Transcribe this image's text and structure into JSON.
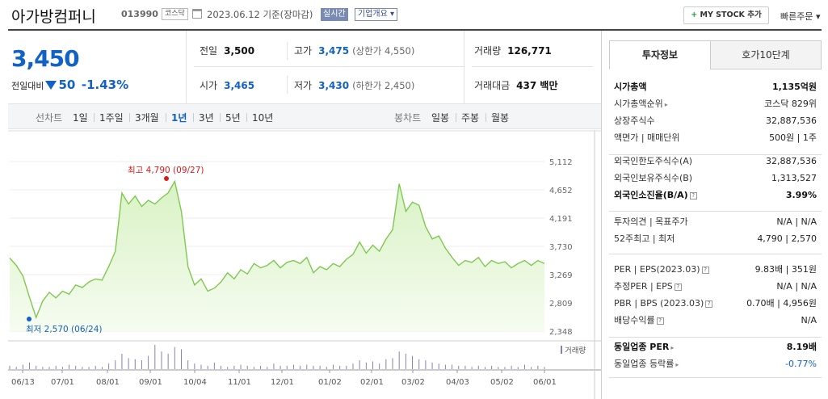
{
  "header": {
    "company": "아가방컴퍼니",
    "code": "013990",
    "market": "코스닥",
    "date": "2023.06.12 기준(장마감)",
    "realtime": "실시간",
    "corp_info": "기업개요 ▾",
    "mystock": "MY STOCK 추가",
    "mystock_plus": "+",
    "quick_order": "빠른주문 ▾"
  },
  "price": {
    "current": "3,450",
    "vs_prev_label": "전일대비",
    "change": "50",
    "change_pct": "-1.43%"
  },
  "stats": {
    "prev_label": "전일",
    "prev": "3,500",
    "high_label": "고가",
    "high": "3,475",
    "upper_limit": "(상한가 4,550)",
    "volume_label": "거래량",
    "volume": "126,771",
    "open_label": "시가",
    "open": "3,465",
    "low_label": "저가",
    "low": "3,430",
    "lower_limit": "(하한가 2,450)",
    "amount_label": "거래대금",
    "amount": "437 백만"
  },
  "periods": {
    "line_label": "선차트",
    "items": [
      "1일",
      "1주일",
      "3개월",
      "1년",
      "3년",
      "5년",
      "10년"
    ],
    "selected": "1년",
    "candle_label": "봉차트",
    "candle_items": [
      "일봉",
      "주봉",
      "월봉"
    ]
  },
  "chart_data": {
    "type": "area",
    "y_ticks": [
      "5,112",
      "4,652",
      "4,191",
      "3,730",
      "3,269",
      "2,809",
      "2,348"
    ],
    "ylim": [
      2348,
      5112
    ],
    "x_ticks": [
      "06/13",
      "07/01",
      "08/01",
      "09/01",
      "10/04",
      "11/01",
      "12/01",
      "01/02",
      "02/01",
      "03/02",
      "04/03",
      "05/02",
      "06/01"
    ],
    "high_label": "최고 4,790 (09/27)",
    "low_label": "최저 2,570 (06/24)",
    "volume_label": "거래량",
    "colors": {
      "line": "#7ec850",
      "fill": "#d9f2c4",
      "high": "#d71b1b",
      "low": "#1261c4",
      "volume": "#8a7fb5"
    },
    "values": [
      3540,
      3420,
      3250,
      2900,
      2570,
      2840,
      2980,
      2890,
      3000,
      2950,
      3100,
      3060,
      3150,
      3200,
      3180,
      3400,
      3650,
      4600,
      4420,
      4550,
      4380,
      4480,
      4420,
      4520,
      4600,
      4790,
      4300,
      3400,
      3100,
      3200,
      3000,
      3050,
      3150,
      3300,
      3200,
      3350,
      3280,
      3450,
      3380,
      3420,
      3500,
      3380,
      3470,
      3500,
      3450,
      3550,
      3300,
      3400,
      3350,
      3450,
      3400,
      3520,
      3600,
      3800,
      3620,
      3750,
      3650,
      3850,
      4000,
      4750,
      4300,
      4450,
      4400,
      4050,
      3850,
      3900,
      3700,
      3550,
      3420,
      3500,
      3470,
      3550,
      3400,
      3500,
      3450,
      3480,
      3380,
      3450,
      3500,
      3420,
      3500,
      3450
    ],
    "volumes": [
      3,
      2,
      4,
      6,
      3,
      2,
      2,
      3,
      2,
      4,
      3,
      2,
      2,
      3,
      2,
      5,
      8,
      14,
      10,
      9,
      8,
      12,
      22,
      16,
      14,
      20,
      18,
      8,
      5,
      4,
      3,
      6,
      3,
      2,
      3,
      4,
      3,
      2,
      3,
      2,
      5,
      3,
      3,
      4,
      3,
      4,
      3,
      3,
      2,
      4,
      3,
      3,
      5,
      8,
      6,
      7,
      5,
      9,
      10,
      16,
      14,
      12,
      9,
      8,
      6,
      5,
      4,
      4,
      3,
      3,
      2,
      3,
      2,
      3,
      2,
      2,
      3,
      2,
      4,
      2,
      3,
      2
    ]
  },
  "panel": {
    "tab_info": "투자정보",
    "tab_hoga": "호가10단계",
    "s1": [
      {
        "l": "시가총액",
        "r": "1,135억원",
        "b": true
      },
      {
        "l": "시가총액순위",
        "r": "코스닥 829위",
        "arrow": true
      },
      {
        "l": "상장주식수",
        "r": "32,887,536"
      },
      {
        "l": "액면가 | 매매단위",
        "r": "500원 | 1주"
      }
    ],
    "s2": [
      {
        "l": "외국인한도주식수(A)",
        "r": "32,887,536"
      },
      {
        "l": "외국인보유주식수(B)",
        "r": "1,313,527"
      },
      {
        "l": "외국인소진율(B/A)",
        "r": "3.99%",
        "b": true,
        "help": true
      }
    ],
    "s3": [
      {
        "l": "투자의견 | 목표주가",
        "r": "N/A | N/A"
      },
      {
        "l": "52주최고 | 최저",
        "r": "4,790 | 2,570"
      }
    ],
    "s4": [
      {
        "l": "PER | EPS(2023.03)",
        "r": "9.83배 | 351원",
        "help": true
      },
      {
        "l": "추정PER | EPS",
        "r": "N/A | N/A",
        "help": true
      },
      {
        "l": "PBR | BPS (2023.03)",
        "r": "0.70배 | 4,956원",
        "help": true
      },
      {
        "l": "배당수익률",
        "r": "N/A",
        "help": true
      }
    ],
    "s5": [
      {
        "l": "동일업종 PER",
        "r": "8.19배",
        "b": true,
        "arrow": true
      },
      {
        "l": "동일업종 등락률",
        "r": "-0.77%",
        "arrow": true,
        "rclass": "blue"
      }
    ]
  }
}
